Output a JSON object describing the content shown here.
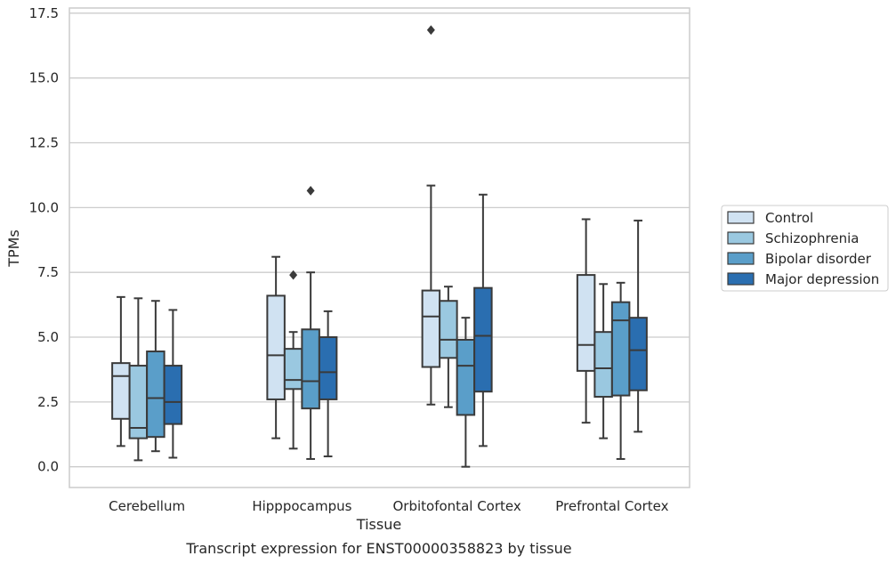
{
  "chart_data": {
    "type": "box",
    "xlabel": "Tissue",
    "ylabel": "TPMs",
    "caption": "Transcript expression for ENST00000358823 by tissue",
    "ylim": [
      -0.8,
      17.7
    ],
    "yticks": [
      "0.0",
      "2.5",
      "5.0",
      "7.5",
      "10.0",
      "12.5",
      "15.0",
      "17.5"
    ],
    "ytick_values": [
      0,
      2.5,
      5,
      7.5,
      10,
      12.5,
      15,
      17.5
    ],
    "grid": "horizontal",
    "legend_position": "right",
    "categories": [
      "Cerebellum",
      "Hipppocampus",
      "Orbitofontal Cortex",
      "Prefrontal Cortex"
    ],
    "series": [
      {
        "name": "Control",
        "color": "#d0e2f2",
        "boxes": [
          {
            "whislo": 0.8,
            "q1": 1.85,
            "med": 3.5,
            "q3": 4.0,
            "whishi": 6.55,
            "fliers": []
          },
          {
            "whislo": 1.1,
            "q1": 2.6,
            "med": 4.3,
            "q3": 6.6,
            "whishi": 8.1,
            "fliers": []
          },
          {
            "whislo": 2.4,
            "q1": 3.85,
            "med": 5.8,
            "q3": 6.8,
            "whishi": 10.85,
            "fliers": [
              16.85
            ]
          },
          {
            "whislo": 1.7,
            "q1": 3.7,
            "med": 4.7,
            "q3": 7.4,
            "whishi": 9.55,
            "fliers": []
          }
        ]
      },
      {
        "name": "Schizophrenia",
        "color": "#9ac8e0",
        "boxes": [
          {
            "whislo": 0.25,
            "q1": 1.1,
            "med": 1.5,
            "q3": 3.9,
            "whishi": 6.5,
            "fliers": []
          },
          {
            "whislo": 0.7,
            "q1": 3.0,
            "med": 3.35,
            "q3": 4.55,
            "whishi": 5.2,
            "fliers": [
              7.4
            ]
          },
          {
            "whislo": 2.3,
            "q1": 4.2,
            "med": 4.9,
            "q3": 6.4,
            "whishi": 6.95,
            "fliers": []
          },
          {
            "whislo": 1.1,
            "q1": 2.7,
            "med": 3.8,
            "q3": 5.2,
            "whishi": 7.05,
            "fliers": []
          }
        ]
      },
      {
        "name": "Bipolar disorder",
        "color": "#5a9ec9",
        "boxes": [
          {
            "whislo": 0.6,
            "q1": 1.15,
            "med": 2.65,
            "q3": 4.45,
            "whishi": 6.4,
            "fliers": []
          },
          {
            "whislo": 0.3,
            "q1": 2.25,
            "med": 3.3,
            "q3": 5.3,
            "whishi": 7.5,
            "fliers": [
              10.65
            ]
          },
          {
            "whislo": 0.0,
            "q1": 2.0,
            "med": 3.9,
            "q3": 4.9,
            "whishi": 5.75,
            "fliers": []
          },
          {
            "whislo": 0.3,
            "q1": 2.75,
            "med": 5.65,
            "q3": 6.35,
            "whishi": 7.1,
            "fliers": []
          }
        ]
      },
      {
        "name": "Major depression",
        "color": "#2a6eb0",
        "boxes": [
          {
            "whislo": 0.35,
            "q1": 1.65,
            "med": 2.5,
            "q3": 3.9,
            "whishi": 6.05,
            "fliers": []
          },
          {
            "whislo": 0.4,
            "q1": 2.6,
            "med": 3.65,
            "q3": 5.0,
            "whishi": 6.0,
            "fliers": []
          },
          {
            "whislo": 0.8,
            "q1": 2.9,
            "med": 5.05,
            "q3": 6.9,
            "whishi": 10.5,
            "fliers": []
          },
          {
            "whislo": 1.35,
            "q1": 2.95,
            "med": 4.5,
            "q3": 5.75,
            "whishi": 9.5,
            "fliers": []
          }
        ]
      }
    ]
  }
}
